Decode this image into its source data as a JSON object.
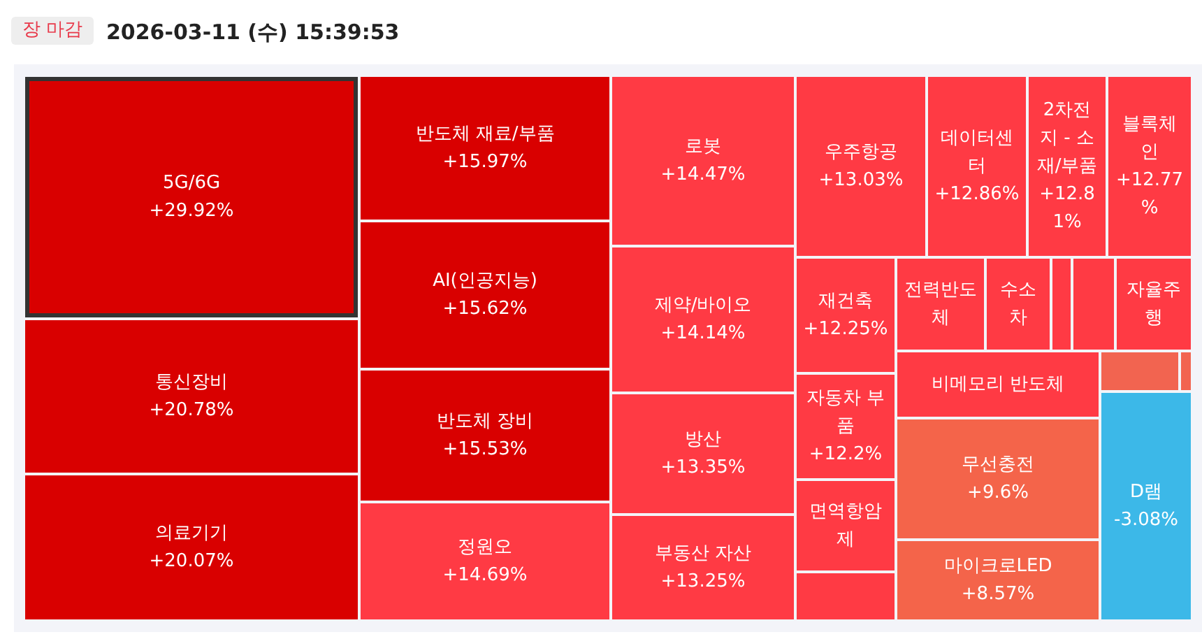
{
  "chart_data": {
    "type": "other",
    "title": "2026-03-11 (수) 15:39:53",
    "subtitle": "장 마감",
    "categories": [
      "5G/6G",
      "통신장비",
      "의료기기",
      "반도체 재료/부품",
      "AI(인공지능)",
      "반도체 장비",
      "정원오",
      "로봇",
      "제약/바이오",
      "방산",
      "부동산 자산",
      "우주항공",
      "데이터센터",
      "2차전지 - 소재/부품",
      "블록체인",
      "재건축",
      "전력반도체",
      "수소차",
      null,
      null,
      "자율주행",
      "비메모리 반도체",
      null,
      null,
      "자동차 부품",
      "면역항암제",
      null,
      "무선충전",
      "마이크로LED",
      "D램"
    ],
    "values": [
      29.92,
      20.78,
      20.07,
      15.97,
      15.62,
      15.53,
      14.69,
      14.47,
      14.14,
      13.35,
      13.25,
      13.03,
      12.86,
      12.81,
      12.77,
      12.25,
      null,
      null,
      null,
      null,
      null,
      null,
      null,
      null,
      12.2,
      null,
      null,
      9.6,
      8.57,
      -3.08
    ],
    "value_labels": [
      "+29.92%",
      "+20.78%",
      "+20.07%",
      "+15.97%",
      "+15.62%",
      "+15.53%",
      "+14.69%",
      "+14.47%",
      "+14.14%",
      "+13.35%",
      "+13.25%",
      "+13.03%",
      "+12.86%",
      "+12.81%",
      "+12.77%",
      "+12.25%",
      null,
      null,
      null,
      null,
      null,
      null,
      null,
      null,
      "+12.2%",
      null,
      null,
      "+9.6%",
      "+8.57%",
      "-3.08%"
    ],
    "colors": [
      "#d90000",
      "#d90000",
      "#d90000",
      "#d90000",
      "#d90000",
      "#d90000",
      "#ff3a44",
      "#ff3a44",
      "#ff3a44",
      "#ff3a44",
      "#ff3a44",
      "#ff3a44",
      "#ff3a44",
      "#ff3a44",
      "#ff3a44",
      "#ff3a44",
      "#ff3a44",
      "#ff3a44",
      "#ff3a44",
      "#ff3a44",
      "#ff3a44",
      "#ff3a44",
      "#f26450",
      "#f26450",
      "#ff3a44",
      "#ff3a44",
      "#ff3a44",
      "#f4644a",
      "#f4644a",
      "#3cb8e8"
    ]
  }
}
